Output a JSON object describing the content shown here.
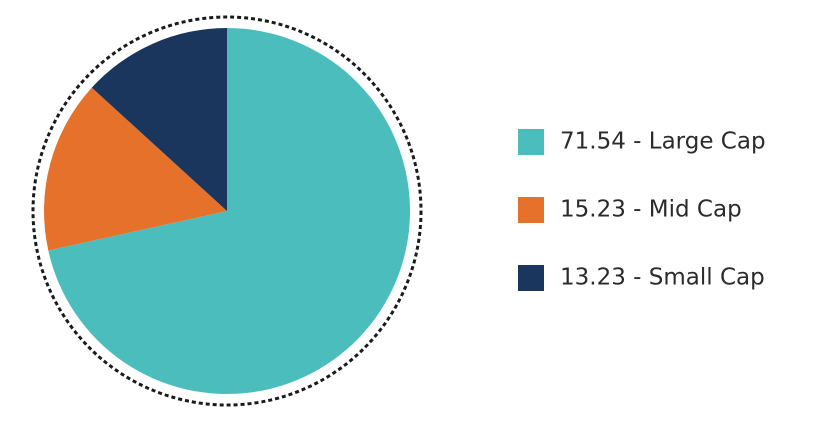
{
  "chart_data": {
    "type": "pie",
    "categories": [
      "71.54 - Large Cap",
      "15.23 - Mid Cap",
      "13.23 - Small Cap"
    ],
    "values": [
      71.54,
      15.23,
      13.23
    ],
    "colors": [
      "#4bbdbc",
      "#e5712a",
      "#1a365d"
    ]
  }
}
